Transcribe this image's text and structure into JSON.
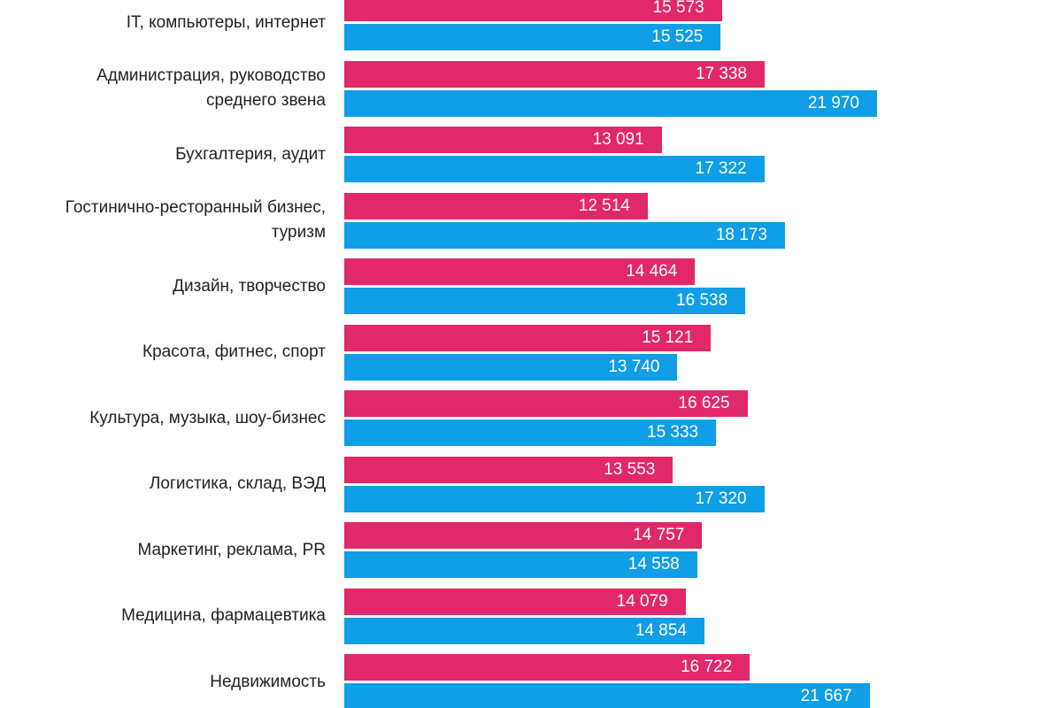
{
  "chart_data": {
    "type": "bar",
    "orientation": "horizontal",
    "categories": [
      "IT, компьютеры, интернет",
      "Администрация, руководство среднего звена",
      "Бухгалтерия, аудит",
      "Гостинично-ресторанный бизнес, туризм",
      "Дизайн, творчество",
      "Красота, фитнес, спорт",
      "Культура, музыка, шоу-бизнес",
      "Логистика, склад, ВЭД",
      "Маркетинг, реклама, PR",
      "Медицина, фармацевтика",
      "Недвижимость"
    ],
    "series": [
      {
        "color": "#e1286a",
        "values": [
          15573,
          17338,
          13091,
          12514,
          14464,
          15121,
          16625,
          13553,
          14757,
          14079,
          16722
        ],
        "value_labels": [
          "15 573",
          "17 338",
          "13 091",
          "12 514",
          "14 464",
          "15 121",
          "16 625",
          "13 553",
          "14 757",
          "14 079",
          "16 722"
        ]
      },
      {
        "color": "#109ee6",
        "values": [
          15525,
          21970,
          17322,
          18173,
          16538,
          13740,
          15333,
          17320,
          14558,
          14854,
          21667
        ],
        "value_labels": [
          "15 525",
          "21 970",
          "17 322",
          "18 173",
          "16 538",
          "13 740",
          "15 333",
          "17 320",
          "14 558",
          "14 854",
          "21 667"
        ]
      }
    ]
  }
}
